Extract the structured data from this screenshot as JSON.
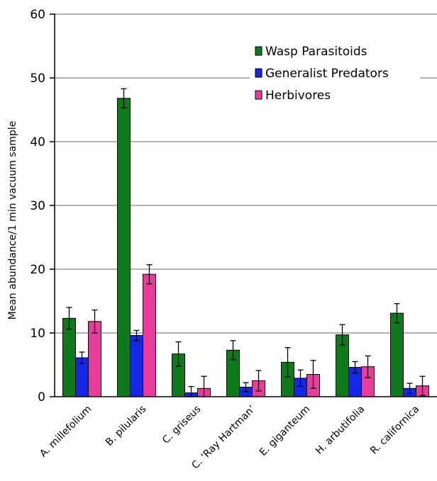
{
  "chart_data": {
    "type": "bar",
    "title": "",
    "xlabel": "",
    "ylabel": "Mean abundance/1 min vacuum sample",
    "ylim": [
      0,
      60
    ],
    "yticks": [
      0,
      10,
      20,
      30,
      40,
      50,
      60
    ],
    "grid": true,
    "legend_position": "top-right",
    "categories": [
      "A. millefolium",
      "B. pilularis",
      "C. griseus",
      "C. ‘Ray Hartman’",
      "E. giganteum",
      "H. arbutifolia",
      "R. californica"
    ],
    "series": [
      {
        "name": "Wasp Parasitoids",
        "color": "#0f7a1c",
        "values": [
          12.3,
          46.8,
          6.7,
          7.3,
          5.4,
          9.7,
          13.1
        ],
        "errors": [
          1.7,
          1.5,
          1.9,
          1.5,
          2.3,
          1.6,
          1.5
        ]
      },
      {
        "name": "Generalist Predators",
        "color": "#1426e6",
        "values": [
          6.1,
          9.6,
          0.6,
          1.5,
          2.9,
          4.6,
          1.3
        ],
        "errors": [
          0.9,
          0.8,
          1.0,
          0.7,
          1.3,
          0.9,
          0.8
        ]
      },
      {
        "name": "Herbivores",
        "color": "#e83c9a",
        "values": [
          11.8,
          19.2,
          1.3,
          2.5,
          3.5,
          4.7,
          1.7
        ],
        "errors": [
          1.8,
          1.5,
          1.9,
          1.6,
          2.2,
          1.7,
          1.5
        ]
      }
    ]
  }
}
